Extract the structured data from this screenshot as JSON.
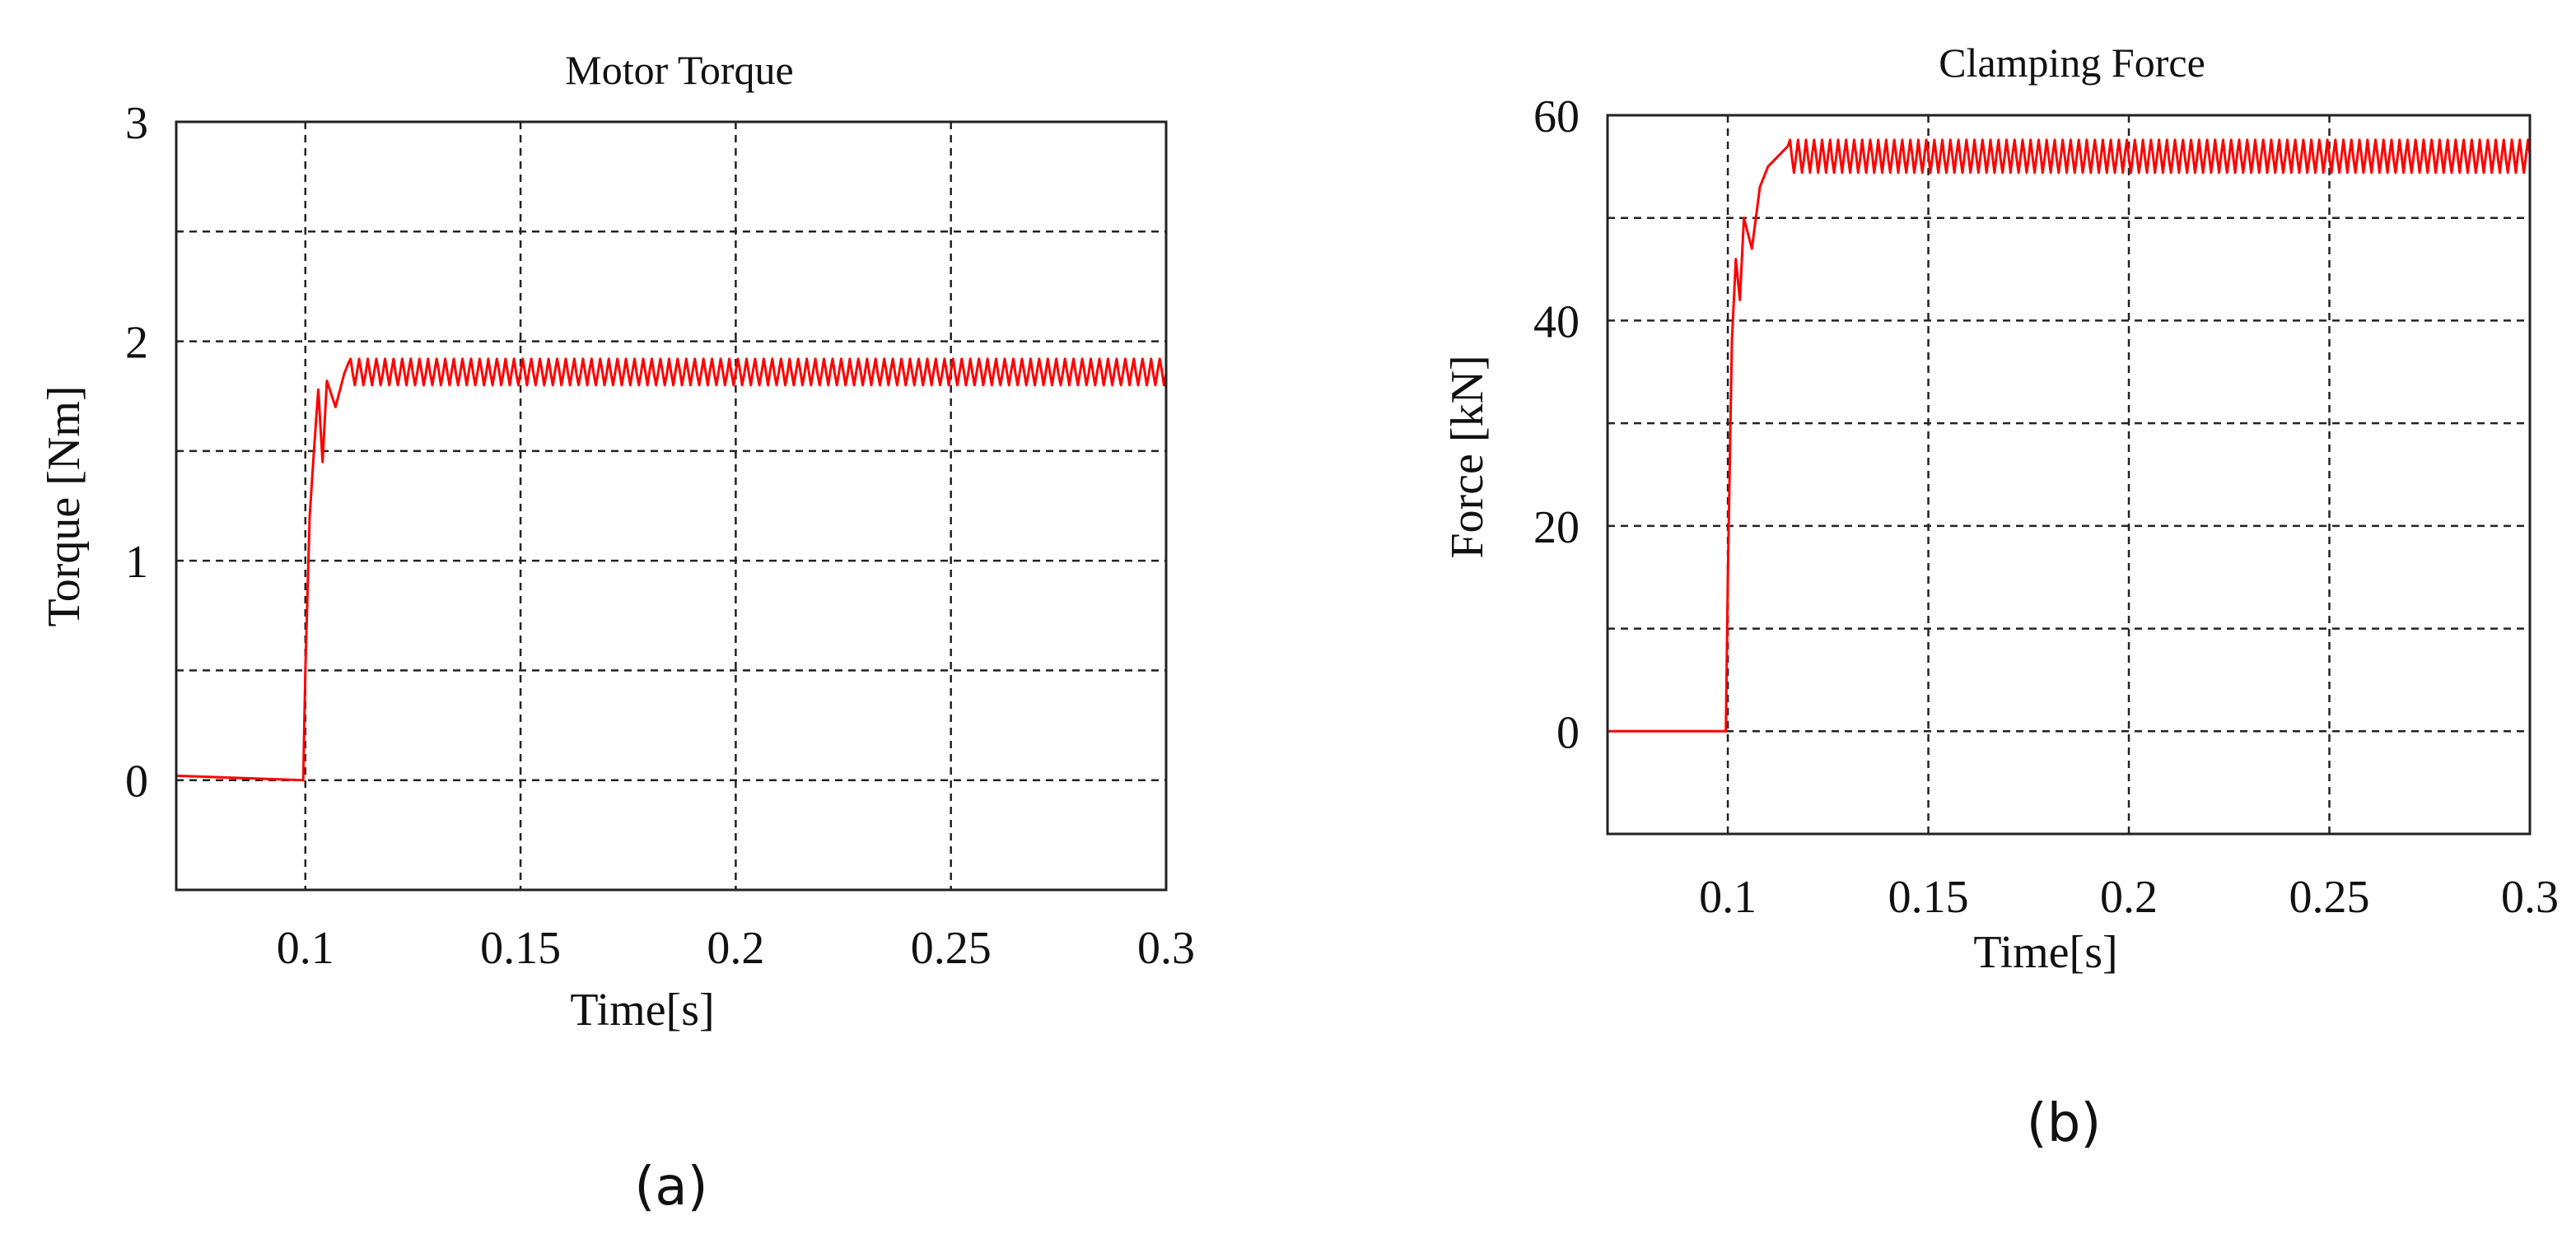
{
  "chart_data": [
    {
      "type": "line",
      "title": "Motor Torque",
      "xlabel": "Time[s]",
      "ylabel": "Torque [Nm]",
      "xlim": [
        0.07,
        0.3
      ],
      "ylim": [
        -0.5,
        3
      ],
      "xticks": [
        0.1,
        0.15,
        0.2,
        0.25,
        0.3
      ],
      "xtick_labels": [
        "0.1",
        "0.15",
        "0.2",
        "0.25",
        "0.3"
      ],
      "yticks": [
        0,
        1,
        2,
        3
      ],
      "ytick_labels": [
        "0",
        "1",
        "2",
        "3"
      ],
      "x_grid": [
        0.1,
        0.15,
        0.2,
        0.25
      ],
      "y_grid": [
        0,
        0.5,
        1,
        1.5,
        2,
        2.5
      ],
      "caption": "(a)",
      "series": [
        {
          "name": "Torque",
          "color": "#ff0000",
          "initial_value": 0.0,
          "step_time": 0.1,
          "steady_value": 1.86,
          "ripple_amplitude": 0.06,
          "ripple_period": 0.002,
          "points": [
            [
              0.07,
              0.02
            ],
            [
              0.0995,
              0.0
            ],
            [
              0.1,
              0.5
            ],
            [
              0.101,
              1.2
            ],
            [
              0.102,
              1.5
            ],
            [
              0.103,
              1.78
            ],
            [
              0.104,
              1.45
            ],
            [
              0.105,
              1.82
            ],
            [
              0.107,
              1.7
            ],
            [
              0.109,
              1.85
            ],
            [
              0.11,
              1.9
            ]
          ]
        }
      ]
    },
    {
      "type": "line",
      "title": "Clamping Force",
      "xlabel": "Time[s]",
      "ylabel": "Force [kN]",
      "xlim": [
        0.07,
        0.3
      ],
      "ylim": [
        -10,
        60
      ],
      "xticks": [
        0.1,
        0.15,
        0.2,
        0.25,
        0.3
      ],
      "xtick_labels": [
        "0.1",
        "0.15",
        "0.2",
        "0.25",
        "0.3"
      ],
      "yticks": [
        0,
        20,
        40,
        60
      ],
      "ytick_labels": [
        "0",
        "20",
        "40",
        "60"
      ],
      "x_grid": [
        0.1,
        0.15,
        0.2,
        0.25
      ],
      "y_grid": [
        0,
        10,
        20,
        30,
        40,
        50
      ],
      "caption": "(b)",
      "series": [
        {
          "name": "Force",
          "color": "#ff0000",
          "initial_value": 0.0,
          "step_time": 0.1,
          "steady_value": 56,
          "ripple_amplitude": 1.6,
          "ripple_period": 0.002,
          "points": [
            [
              0.07,
              0.0
            ],
            [
              0.0995,
              0.0
            ],
            [
              0.1,
              15
            ],
            [
              0.101,
              38
            ],
            [
              0.102,
              46
            ],
            [
              0.103,
              42
            ],
            [
              0.104,
              50
            ],
            [
              0.106,
              47
            ],
            [
              0.108,
              53
            ],
            [
              0.11,
              55
            ],
            [
              0.115,
              57
            ]
          ]
        }
      ]
    }
  ]
}
